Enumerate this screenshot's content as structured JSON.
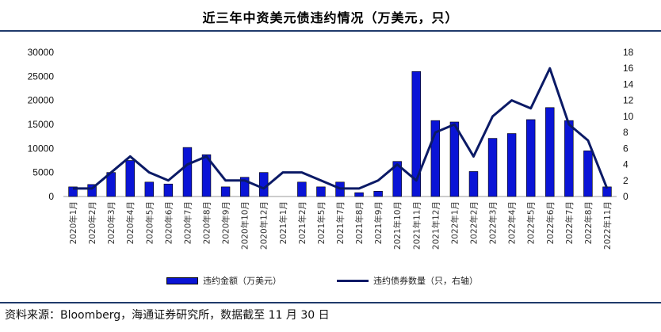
{
  "title": "近三年中资美元债违约情况（万美元，只）",
  "source": "资料来源：Bloomberg，海通证券研究所，数据截至 11 月 30 日",
  "colors": {
    "bar": "#0a14d6",
    "line": "#0b1a66",
    "rule": "#1f3a6b"
  },
  "chart_data": {
    "type": "bar+line",
    "categories": [
      "2020年1月",
      "2020年2月",
      "2020年3月",
      "2020年4月",
      "2020年5月",
      "2020年6月",
      "2020年7月",
      "2020年8月",
      "2020年9月",
      "2020年10月",
      "2020年12月",
      "2021年1月",
      "2021年2月",
      "2021年5月",
      "2021年7月",
      "2021年8月",
      "2021年9月",
      "2021年10月",
      "2021年11月",
      "2021年12月",
      "2022年1月",
      "2022年2月",
      "2022年3月",
      "2022年4月",
      "2022年5月",
      "2022年6月",
      "2022年7月",
      "2022年8月",
      "2022年11月"
    ],
    "series": [
      {
        "name": "违约金额（万美元）",
        "type": "bar",
        "axis": "left",
        "values": [
          2000,
          2500,
          5000,
          7500,
          3000,
          2600,
          10200,
          8700,
          2000,
          4000,
          5000,
          0,
          3000,
          2000,
          3000,
          800,
          1100,
          7300,
          26000,
          15800,
          15500,
          5200,
          12100,
          13100,
          16000,
          18500,
          15800,
          9500,
          2000
        ]
      },
      {
        "name": "违约债券数量（只，右轴）",
        "type": "line",
        "axis": "right",
        "values": [
          1,
          1,
          3,
          5,
          3,
          2,
          4,
          5,
          2,
          2,
          1,
          3,
          3,
          2,
          1,
          1,
          2,
          4,
          2,
          8,
          9,
          5,
          10,
          12,
          11,
          16,
          9,
          7,
          1
        ]
      }
    ],
    "y_left": {
      "min": 0,
      "max": 30000,
      "ticks": [
        0,
        5000,
        10000,
        15000,
        20000,
        25000,
        30000
      ]
    },
    "y_right": {
      "min": 0,
      "max": 18,
      "ticks": [
        0,
        2,
        4,
        6,
        8,
        10,
        12,
        14,
        16,
        18
      ]
    },
    "grid": false,
    "legend_position": "bottom"
  }
}
